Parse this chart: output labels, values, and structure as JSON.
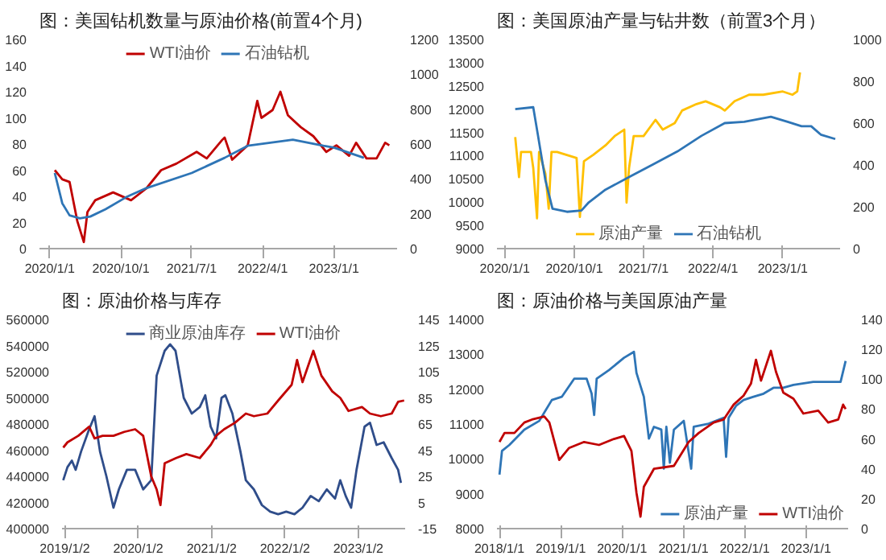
{
  "chart_data": [
    {
      "type": "line",
      "title": "图：美国钻机数量与原油价格(前置4个月)",
      "legend": "top",
      "xlim": [
        "2019-11-22",
        "2023-09-01"
      ],
      "xticks": [
        {
          "value": "2020-01-01",
          "label": "2020/1/1"
        },
        {
          "value": "2020-10-01",
          "label": "2020/10/1"
        },
        {
          "value": "2021-07-01",
          "label": "2021/7/1"
        },
        {
          "value": "2022-04-01",
          "label": "2022/4/1"
        },
        {
          "value": "2023-01-01",
          "label": "2023/1/1"
        }
      ],
      "ylim": [
        0,
        160
      ],
      "yticks": [
        0,
        20,
        40,
        60,
        80,
        100,
        120,
        140,
        160
      ],
      "y2lim": [
        0,
        1200
      ],
      "y2ticks": [
        0,
        200,
        400,
        600,
        800,
        1000,
        1200
      ],
      "series": [
        {
          "name": "WTI油价",
          "color": "#c00000",
          "x": [
            "2020-01-20",
            "2020-02-18",
            "2020-03-17",
            "2020-04-16",
            "2020-05-11",
            "2020-05-25",
            "2020-06-24",
            "2020-09-01",
            "2020-11-09",
            "2021-01-07",
            "2021-03-05",
            "2021-05-03",
            "2021-07-20",
            "2021-08-28",
            "2021-10-26",
            "2021-11-05",
            "2021-12-04",
            "2022-02-02",
            "2022-03-11",
            "2022-03-27",
            "2022-05-09",
            "2022-06-08",
            "2022-07-07",
            "2022-08-25",
            "2022-10-13",
            "2022-12-02",
            "2023-01-10",
            "2023-02-28",
            "2023-03-27",
            "2023-05-06",
            "2023-06-14",
            "2023-07-17",
            "2023-08-02"
          ],
          "values": [
            60,
            53,
            51,
            21,
            5,
            28,
            37,
            43,
            37,
            46,
            60,
            65,
            74,
            69,
            83,
            85,
            68,
            79,
            113,
            100,
            106,
            120,
            102,
            93,
            86,
            74,
            79,
            71,
            81,
            69,
            69,
            81,
            79
          ]
        },
        {
          "name": "石油钻机",
          "color": "#2e75b6",
          "axis": "y2",
          "x": [
            "2020-01-20",
            "2020-02-18",
            "2020-03-17",
            "2020-04-26",
            "2020-06-05",
            "2020-08-03",
            "2020-10-21",
            "2021-01-07",
            "2021-07-01",
            "2021-11-05",
            "2022-02-02",
            "2022-07-26",
            "2022-11-21",
            "2022-12-31",
            "2023-04-26"
          ],
          "values": [
            434,
            260,
            191,
            174,
            184,
            226,
            295,
            347,
            434,
            521,
            590,
            625,
            590,
            580,
            521
          ]
        }
      ]
    },
    {
      "type": "line",
      "title": "图：美国原油产量与钻井数（前置3个月）",
      "legend": "bottom",
      "xlim": [
        "2019-12-01",
        "2023-08-15"
      ],
      "xticks": [
        {
          "value": "2020-01-01",
          "label": "2020/1/1"
        },
        {
          "value": "2020-10-01",
          "label": "2020/10/1"
        },
        {
          "value": "2021-07-01",
          "label": "2021/7/1"
        },
        {
          "value": "2022-04-01",
          "label": "2022/4/1"
        },
        {
          "value": "2023-01-01",
          "label": "2023/1/1"
        }
      ],
      "ylim": [
        9000,
        13500
      ],
      "yticks": [
        9000,
        9500,
        10000,
        10500,
        11000,
        11500,
        12000,
        12500,
        13000,
        13500
      ],
      "y2lim": [
        0,
        1000
      ],
      "y2ticks": [
        0,
        200,
        400,
        600,
        800,
        1000
      ],
      "series": [
        {
          "name": "原油产量",
          "color": "#ffc000",
          "x": [
            "2020-02-11",
            "2020-02-26",
            "2020-03-05",
            "2020-04-13",
            "2020-04-22",
            "2020-05-07",
            "2020-05-15",
            "2020-06-09",
            "2020-06-22",
            "2020-07-03",
            "2020-07-25",
            "2020-10-10",
            "2020-10-23",
            "2020-11-08",
            "2020-12-15",
            "2021-02-01",
            "2021-03-09",
            "2021-04-16",
            "2021-04-25",
            "2021-05-05",
            "2021-05-23",
            "2021-07-01",
            "2021-08-17",
            "2021-09-15",
            "2021-11-01",
            "2021-11-30",
            "2022-01-26",
            "2022-03-03",
            "2022-04-29",
            "2022-05-17",
            "2022-06-25",
            "2022-08-21",
            "2022-10-16",
            "2023-01-01",
            "2023-02-08",
            "2023-02-27",
            "2023-03-10"
          ],
          "values": [
            11400,
            10540,
            11080,
            11080,
            10740,
            9650,
            11080,
            10610,
            9860,
            11080,
            11080,
            10950,
            9680,
            10880,
            11020,
            11220,
            11420,
            11560,
            9990,
            10740,
            11420,
            11420,
            11770,
            11560,
            11700,
            11970,
            12110,
            12170,
            12040,
            11970,
            12170,
            12310,
            12310,
            12380,
            12310,
            12380,
            12790
          ]
        },
        {
          "name": "石油钻机",
          "color": "#2e75b6",
          "axis": "y2",
          "x": [
            "2020-02-11",
            "2020-04-22",
            "2020-05-11",
            "2020-06-09",
            "2020-07-07",
            "2020-09-02",
            "2020-10-29",
            "2020-11-27",
            "2021-02-01",
            "2021-05-05",
            "2021-08-08",
            "2021-11-11",
            "2022-02-14",
            "2022-05-17",
            "2022-08-02",
            "2022-11-15",
            "2023-01-20",
            "2023-03-16",
            "2023-04-23",
            "2023-05-31",
            "2023-07-27"
          ],
          "values": [
            667,
            676,
            539,
            327,
            191,
            176,
            182,
            221,
            282,
            342,
            403,
            464,
            539,
            600,
            606,
            630,
            606,
            585,
            585,
            545,
            524
          ]
        }
      ]
    },
    {
      "type": "line",
      "title": "图：原油价格与库存",
      "legend": "top",
      "xlim": [
        "2018-12-19",
        "2023-08-23"
      ],
      "xticks": [
        {
          "value": "2019-01-02",
          "label": "2019/1/2"
        },
        {
          "value": "2020-01-02",
          "label": "2020/1/2"
        },
        {
          "value": "2021-01-02",
          "label": "2021/1/2"
        },
        {
          "value": "2022-01-02",
          "label": "2022/1/2"
        },
        {
          "value": "2023-01-02",
          "label": "2023/1/2"
        }
      ],
      "ylim": [
        400000,
        560000
      ],
      "yticks": [
        400000,
        420000,
        440000,
        460000,
        480000,
        500000,
        520000,
        540000,
        560000
      ],
      "y2lim": [
        -15,
        145
      ],
      "y2ticks": [
        -15,
        5,
        25,
        45,
        65,
        85,
        105,
        125,
        145
      ],
      "series": [
        {
          "name": "商业原油库存",
          "color": "#2f4d8a",
          "x": [
            "2018-12-25",
            "2019-01-15",
            "2019-02-06",
            "2019-02-25",
            "2019-03-24",
            "2019-05-03",
            "2019-05-30",
            "2019-06-26",
            "2019-07-28",
            "2019-09-01",
            "2019-09-28",
            "2019-11-07",
            "2019-12-18",
            "2020-01-27",
            "2020-03-07",
            "2020-04-03",
            "2020-05-13",
            "2020-06-09",
            "2020-07-06",
            "2020-08-16",
            "2020-09-25",
            "2020-11-04",
            "2020-12-01",
            "2020-12-28",
            "2021-01-24",
            "2021-02-20",
            "2021-03-11",
            "2021-04-15",
            "2021-05-25",
            "2021-06-21",
            "2021-07-31",
            "2021-09-09",
            "2021-10-20",
            "2021-11-29",
            "2022-01-08",
            "2022-02-18",
            "2022-03-30",
            "2022-05-10",
            "2022-06-19",
            "2022-07-29",
            "2022-09-08",
            "2022-10-04",
            "2022-10-31",
            "2022-11-27",
            "2022-12-24",
            "2023-02-02",
            "2023-03-01",
            "2023-04-03",
            "2023-05-08",
            "2023-06-17",
            "2023-07-19",
            "2023-08-02"
          ],
          "values": [
            437000,
            447000,
            452000,
            445000,
            459000,
            476000,
            486000,
            459000,
            440000,
            416000,
            430000,
            445000,
            445000,
            430000,
            437000,
            517000,
            536000,
            541000,
            536000,
            500000,
            488000,
            493000,
            502000,
            478000,
            469000,
            500000,
            502000,
            488000,
            459000,
            437000,
            430000,
            418000,
            413000,
            411000,
            413000,
            411000,
            416000,
            425000,
            421000,
            430000,
            423000,
            437000,
            425000,
            416000,
            445000,
            478000,
            481000,
            464000,
            466000,
            454000,
            445000,
            435000
          ]
        },
        {
          "name": "WTI油价",
          "color": "#c00000",
          "axis": "y2",
          "x": [
            "2018-12-25",
            "2019-01-15",
            "2019-03-10",
            "2019-05-03",
            "2019-05-30",
            "2019-07-09",
            "2019-09-01",
            "2019-10-25",
            "2019-12-18",
            "2020-01-27",
            "2020-03-07",
            "2020-04-03",
            "2020-04-22",
            "2020-05-13",
            "2020-07-09",
            "2020-08-29",
            "2020-11-04",
            "2020-12-28",
            "2021-01-24",
            "2021-03-05",
            "2021-04-28",
            "2021-06-21",
            "2021-07-31",
            "2021-10-06",
            "2021-11-29",
            "2022-02-04",
            "2022-03-03",
            "2022-03-30",
            "2022-05-23",
            "2022-07-02",
            "2022-08-25",
            "2022-10-04",
            "2022-11-14",
            "2023-01-20",
            "2023-03-01",
            "2023-04-24",
            "2023-06-17",
            "2023-07-19",
            "2023-08-18"
          ],
          "values": [
            47,
            51,
            56,
            63,
            54,
            56,
            56,
            59,
            61,
            56,
            25,
            15,
            3,
            35,
            39,
            42,
            39,
            49,
            56,
            61,
            66,
            73,
            71,
            73,
            83,
            95,
            114,
            97,
            121,
            102,
            90,
            85,
            75,
            78,
            73,
            71,
            73,
            82,
            83
          ]
        }
      ]
    },
    {
      "type": "line",
      "title": "图：原油价格与美国原油产量",
      "legend": "bottom right",
      "xlim": [
        "2017-12-17",
        "2023-09-09"
      ],
      "xticks": [
        {
          "value": "2018-01-01",
          "label": "2018/1/1"
        },
        {
          "value": "2019-01-01",
          "label": "2019/1/1"
        },
        {
          "value": "2020-01-01",
          "label": "2020/1/1"
        },
        {
          "value": "2021-01-01",
          "label": "2021/1/1"
        },
        {
          "value": "2022-01-01",
          "label": "2022/1/1"
        },
        {
          "value": "2023-01-01",
          "label": "2023/1/1"
        }
      ],
      "ylim": [
        8000,
        14000
      ],
      "yticks": [
        8000,
        9000,
        10000,
        11000,
        12000,
        13000,
        14000
      ],
      "y2lim": [
        0,
        140
      ],
      "y2ticks": [
        0,
        20,
        40,
        60,
        80,
        100,
        120,
        140
      ],
      "series": [
        {
          "name": "原油产量",
          "color": "#2e75b6",
          "x": [
            "2018-01-01",
            "2018-01-16",
            "2018-03-01",
            "2018-05-29",
            "2018-08-26",
            "2018-11-09",
            "2019-01-07",
            "2019-03-22",
            "2019-06-04",
            "2019-07-04",
            "2019-07-19",
            "2019-08-03",
            "2019-10-16",
            "2020-01-13",
            "2020-03-12",
            "2020-03-27",
            "2020-05-10",
            "2020-06-09",
            "2020-07-09",
            "2020-08-22",
            "2020-09-06",
            "2020-09-21",
            "2020-10-12",
            "2020-11-05",
            "2021-01-03",
            "2021-02-16",
            "2021-03-03",
            "2021-05-31",
            "2021-08-28",
            "2021-09-12",
            "2021-09-27",
            "2021-11-10",
            "2021-12-25",
            "2022-02-22",
            "2022-04-23",
            "2022-06-21",
            "2022-08-19",
            "2022-10-18",
            "2023-02-13",
            "2023-07-26",
            "2023-08-25"
          ],
          "values": [
            9550,
            10230,
            10400,
            10840,
            11090,
            11690,
            11780,
            12300,
            12300,
            11870,
            11260,
            12300,
            12550,
            12900,
            13070,
            12470,
            11780,
            10580,
            10920,
            10840,
            9720,
            10920,
            9890,
            10840,
            11090,
            9720,
            10920,
            11010,
            11180,
            10060,
            11180,
            11520,
            11690,
            11780,
            11870,
            12040,
            12040,
            12120,
            12210,
            12210,
            12810
          ]
        },
        {
          "name": "WTI油价",
          "color": "#c00000",
          "axis": "y2",
          "x": [
            "2018-01-01",
            "2018-01-31",
            "2018-03-31",
            "2018-05-29",
            "2018-07-13",
            "2018-09-25",
            "2018-10-25",
            "2018-12-23",
            "2019-02-20",
            "2019-05-20",
            "2019-08-17",
            "2019-11-14",
            "2020-01-13",
            "2020-02-26",
            "2020-03-27",
            "2020-04-20",
            "2020-05-10",
            "2020-07-09",
            "2020-11-05",
            "2021-02-01",
            "2021-04-02",
            "2021-06-30",
            "2021-08-28",
            "2021-10-27",
            "2021-12-25",
            "2022-02-07",
            "2022-03-09",
            "2022-04-08",
            "2022-06-06",
            "2022-07-06",
            "2022-08-19",
            "2022-10-18",
            "2022-12-16",
            "2023-03-15",
            "2023-05-13",
            "2023-07-12",
            "2023-08-10",
            "2023-08-25"
          ],
          "values": [
            58,
            64,
            64,
            71,
            73,
            75,
            71,
            46,
            54,
            58,
            56,
            60,
            62,
            52,
            24,
            8,
            28,
            40,
            42,
            58,
            64,
            71,
            73,
            83,
            89,
            97,
            113,
            99,
            119,
            105,
            91,
            87,
            77,
            79,
            71,
            73,
            83,
            80
          ]
        }
      ]
    }
  ]
}
